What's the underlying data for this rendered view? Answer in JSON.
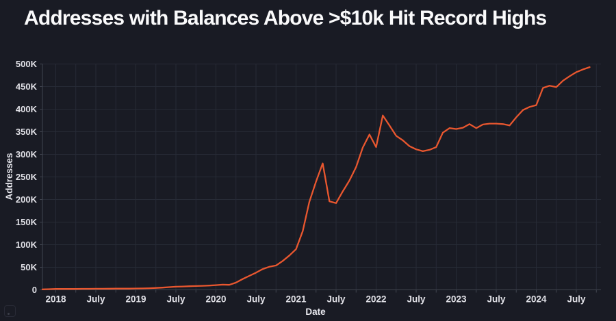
{
  "title": "Addresses with Balances Above >$10k Hit Record Highs",
  "chart_data": {
    "type": "line",
    "title": "Addresses with Balances Above >$10k Hit Record Highs",
    "xlabel": "Date",
    "ylabel": "Addresses",
    "ylim": [
      0,
      500000
    ],
    "grid": true,
    "legend_position": "none",
    "values_unit": "thousands of addresses",
    "y_tick_labels": [
      "0",
      "50K",
      "100K",
      "150K",
      "200K",
      "250K",
      "300K",
      "350K",
      "400K",
      "450K",
      "500K"
    ],
    "x_tick_labels": [
      "2018",
      "July",
      "2019",
      "July",
      "2020",
      "July",
      "2021",
      "July",
      "2022",
      "July",
      "2023",
      "July",
      "2024",
      "July"
    ],
    "x": [
      "2017-11",
      "2017-12",
      "2018-01",
      "2018-02",
      "2018-03",
      "2018-04",
      "2018-05",
      "2018-06",
      "2018-07",
      "2018-08",
      "2018-09",
      "2018-10",
      "2018-11",
      "2018-12",
      "2019-01",
      "2019-02",
      "2019-03",
      "2019-04",
      "2019-05",
      "2019-06",
      "2019-07",
      "2019-08",
      "2019-09",
      "2019-10",
      "2019-11",
      "2019-12",
      "2020-01",
      "2020-02",
      "2020-03",
      "2020-04",
      "2020-05",
      "2020-06",
      "2020-07",
      "2020-08",
      "2020-09",
      "2020-10",
      "2020-11",
      "2020-12",
      "2021-01",
      "2021-02",
      "2021-03",
      "2021-04",
      "2021-05",
      "2021-06",
      "2021-07",
      "2021-08",
      "2021-09",
      "2021-10",
      "2021-11",
      "2021-12",
      "2022-01",
      "2022-02",
      "2022-03",
      "2022-04",
      "2022-05",
      "2022-06",
      "2022-07",
      "2022-08",
      "2022-09",
      "2022-10",
      "2022-11",
      "2022-12",
      "2023-01",
      "2023-02",
      "2023-03",
      "2023-04",
      "2023-05",
      "2023-06",
      "2023-07",
      "2023-08",
      "2023-09",
      "2023-10",
      "2023-11",
      "2023-12",
      "2024-01",
      "2024-02",
      "2024-03",
      "2024-04",
      "2024-05",
      "2024-06",
      "2024-07",
      "2024-08",
      "2024-09"
    ],
    "values": [
      1,
      1.5,
      2,
      2,
      2,
      2,
      2.2,
      2.3,
      2.4,
      2.5,
      2.6,
      2.7,
      2.8,
      2.8,
      3,
      3.2,
      3.6,
      4.2,
      5,
      6,
      7,
      7.5,
      8,
      8.5,
      9,
      9.5,
      10.5,
      11.5,
      11,
      16,
      24,
      31,
      38,
      46,
      51,
      54,
      64,
      76,
      90,
      130,
      195,
      240,
      280,
      196,
      192,
      218,
      242,
      272,
      315,
      344,
      316,
      386,
      364,
      341,
      331,
      318,
      311,
      307,
      310,
      316,
      348,
      358,
      356,
      359,
      367,
      358,
      366,
      368,
      368,
      367,
      364,
      382,
      398,
      405,
      409,
      447,
      452,
      449,
      463,
      473,
      482,
      488,
      493
    ],
    "colors": {
      "line": "#e9572f",
      "background": "#191b24",
      "gridline": "#272b36",
      "axis": "#40444f",
      "tick_text": "#e0e0e6",
      "axis_label_text": "#e9e9ef",
      "title_text": "#fafafb"
    }
  }
}
